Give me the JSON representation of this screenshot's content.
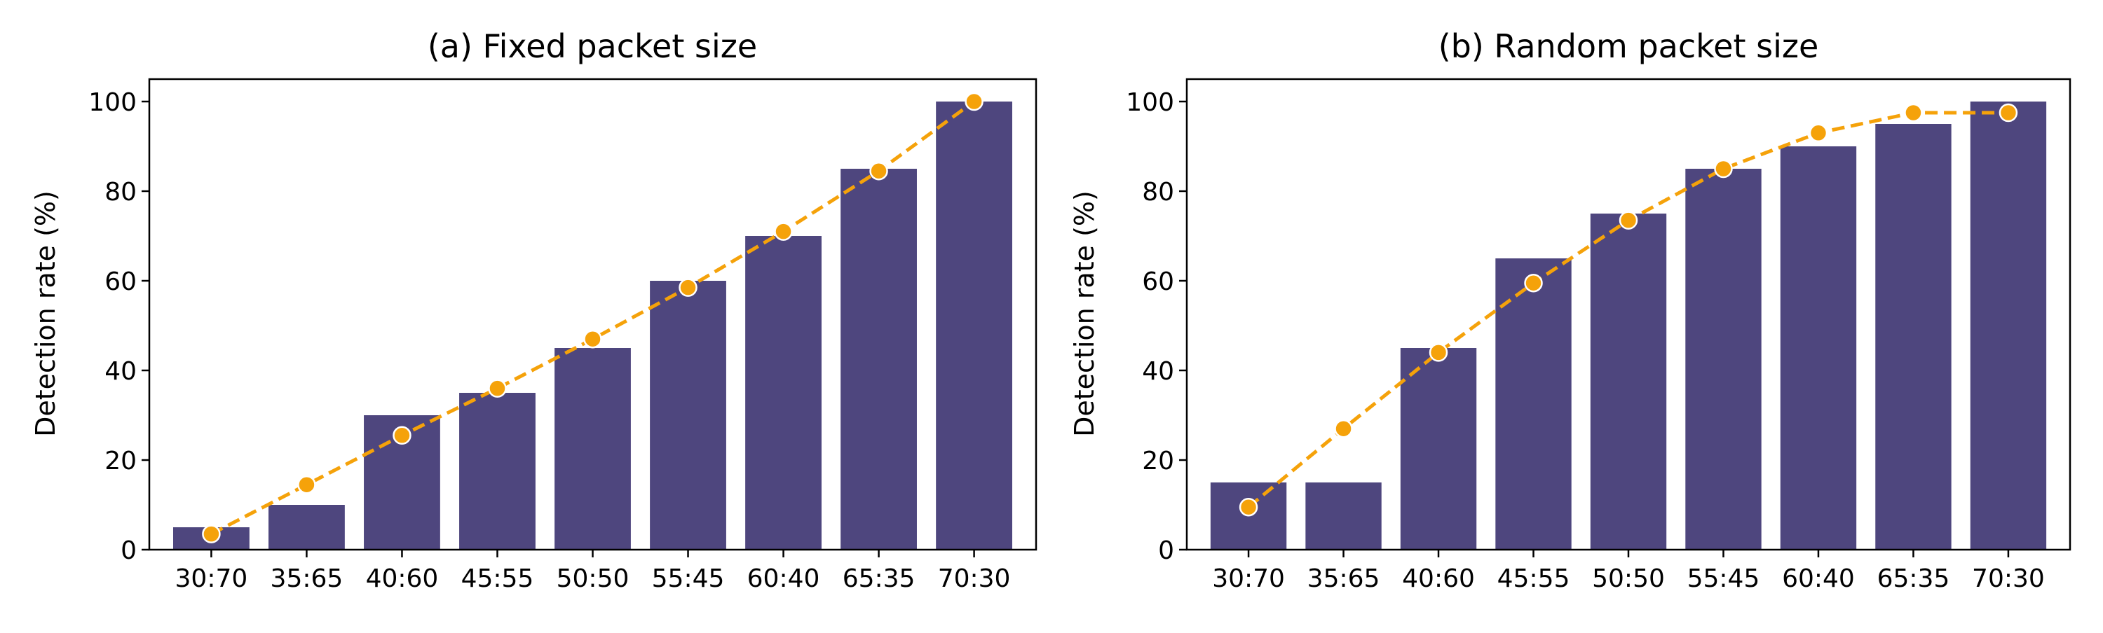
{
  "colors": {
    "bar": "#4e467e",
    "line": "#f5a20a",
    "axis": "#000000",
    "marker_edge": "#ffffff"
  },
  "chart_data": [
    {
      "type": "bar",
      "title": "(a) Fixed packet size",
      "xlabel": "",
      "ylabel": "Detection rate (%)",
      "ylim": [
        0,
        105
      ],
      "yticks": [
        0,
        20,
        40,
        60,
        80,
        100
      ],
      "grid": false,
      "categories": [
        "30:70",
        "35:65",
        "40:60",
        "45:55",
        "50:50",
        "55:45",
        "60:40",
        "65:35",
        "70:30"
      ],
      "values": [
        5,
        10,
        30,
        35,
        45,
        60,
        70,
        85,
        100
      ],
      "trend": [
        3.5,
        14.5,
        25.5,
        36,
        47,
        58.5,
        71,
        84.5,
        100
      ]
    },
    {
      "type": "bar",
      "title": "(b) Random packet size",
      "xlabel": "",
      "ylabel": "Detection rate (%)",
      "ylim": [
        0,
        105
      ],
      "yticks": [
        0,
        20,
        40,
        60,
        80,
        100
      ],
      "grid": false,
      "categories": [
        "30:70",
        "35:65",
        "40:60",
        "45:55",
        "50:50",
        "55:45",
        "60:40",
        "65:35",
        "70:30"
      ],
      "values": [
        15,
        15,
        45,
        65,
        75,
        85,
        90,
        95,
        100
      ],
      "trend": [
        9.5,
        27,
        44,
        59.5,
        73.5,
        85,
        93,
        97.5,
        97.5
      ]
    }
  ]
}
